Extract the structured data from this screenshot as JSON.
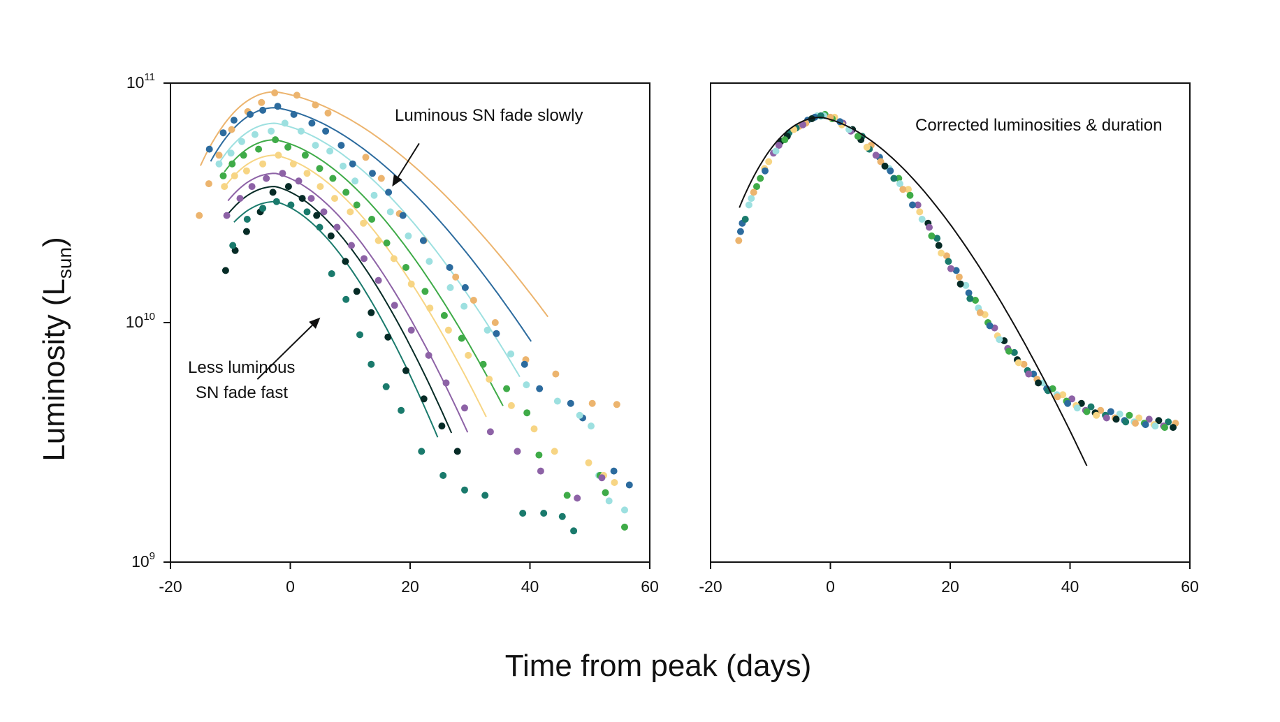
{
  "figure": {
    "ylabel_main": "Luminosity (L",
    "ylabel_sub": "sun",
    "ylabel_close": ")",
    "xlabel": "Time from peak (days)"
  },
  "chart_data": [
    {
      "type": "scatter",
      "panel": "left",
      "yscale": "log",
      "xlim": [
        -20,
        60
      ],
      "ylim": [
        1000000000,
        100000000000
      ],
      "xticks": [
        -20,
        0,
        20,
        40,
        60
      ],
      "xtick_labels": [
        "-20",
        "0",
        "20",
        "40",
        "60"
      ],
      "ytick_labels": [
        {
          "base": "10",
          "exp": "9",
          "value": 1000000000
        },
        {
          "base": "10",
          "exp": "10",
          "value": 10000000000
        },
        {
          "base": "10",
          "exp": "11",
          "value": 100000000000
        }
      ],
      "annotations": [
        {
          "lines": [
            "Luminous SN fade slowly"
          ],
          "arrow_from": [
            21.5,
            56000000000
          ],
          "arrow_to": [
            17,
            37000000000
          ]
        },
        {
          "lines": [
            "Less luminous",
            "SN fade fast"
          ],
          "arrow_from": [
            -5.5,
            5800000000
          ],
          "arrow_to": [
            5,
            10500000000
          ]
        }
      ],
      "series": [
        {
          "color": "#ecb46e",
          "peak": 92000000000,
          "fade": 0.55,
          "line_end": 43,
          "x": [
            -15.2,
            -13.6,
            -11.9,
            -9.8,
            -7.1,
            -4.8,
            -2.6,
            1.1,
            4.2,
            6.3,
            12.6,
            15.2,
            18.2,
            22.3,
            27.6,
            30.6,
            34.2,
            39.3,
            44.3,
            50.4,
            54.5
          ],
          "y": [
            28000000000,
            38000000000,
            50000000000,
            64000000000,
            76000000000,
            83000000000,
            91000000000,
            89000000000,
            81000000000,
            75000000000,
            49000000000,
            40000000000,
            28500000000,
            22000000000,
            15500000000,
            12400000000,
            10000000000,
            7000000000,
            6100000000,
            4600000000,
            4550000000
          ]
        },
        {
          "color": "#2c6b9e",
          "peak": 79000000000,
          "fade": 0.6,
          "line_end": 40.5,
          "x": [
            -13.5,
            -11.2,
            -9.4,
            -6.7,
            -4.6,
            -2.1,
            0.6,
            3.6,
            5.9,
            8.5,
            10.4,
            13.7,
            16.4,
            18.8,
            22.2,
            26.6,
            29.2,
            34.4,
            39.1,
            41.6,
            46.8,
            48.8,
            54.0,
            56.6
          ],
          "y": [
            53000000000,
            62000000000,
            70000000000,
            74000000000,
            77000000000,
            80000000000,
            74000000000,
            68000000000,
            63000000000,
            55000000000,
            46000000000,
            42000000000,
            35000000000,
            28000000000,
            22000000000,
            17000000000,
            14000000000,
            9000000000,
            6700000000,
            5300000000,
            4600000000,
            4000000000,
            2400000000,
            2100000000
          ]
        },
        {
          "color": "#9de0e0",
          "peak": 68000000000,
          "fade": 0.66,
          "line_end": 38.5,
          "x": [
            -11.9,
            -9.9,
            -8.1,
            -5.9,
            -3.2,
            -0.9,
            1.8,
            4.2,
            6.6,
            8.8,
            10.8,
            14.0,
            16.7,
            19.7,
            23.2,
            26.7,
            29.0,
            32.9,
            36.8,
            39.4,
            44.6,
            48.3,
            50.2,
            51.5,
            53.2,
            55.8
          ],
          "y": [
            46000000000,
            51000000000,
            57000000000,
            61000000000,
            63000000000,
            68000000000,
            63000000000,
            55000000000,
            52000000000,
            45000000000,
            39000000000,
            34000000000,
            29000000000,
            23000000000,
            18000000000,
            14000000000,
            11700000000,
            9300000000,
            7400000000,
            5500000000,
            4700000000,
            4100000000,
            3700000000,
            2300000000,
            1800000000,
            1650000000
          ]
        },
        {
          "color": "#3fab48",
          "peak": 58000000000,
          "fade": 0.73,
          "line_end": 35.5,
          "x": [
            -11.2,
            -9.7,
            -7.8,
            -5.3,
            -2.5,
            -0.4,
            2.5,
            4.9,
            7.1,
            9.3,
            11.1,
            13.6,
            16.1,
            19.3,
            22.5,
            25.7,
            28.6,
            32.2,
            36.1,
            39.5,
            41.5,
            46.2,
            51.7,
            52.6,
            55.8
          ],
          "y": [
            41000000000,
            46000000000,
            50000000000,
            53000000000,
            58000000000,
            54000000000,
            50000000000,
            44000000000,
            40000000000,
            35000000000,
            31000000000,
            27000000000,
            21500000000,
            17000000000,
            13500000000,
            10700000000,
            8600000000,
            6700000000,
            5300000000,
            4200000000,
            2800000000,
            1900000000,
            2300000000,
            1950000000,
            1400000000
          ]
        },
        {
          "color": "#f7d584",
          "peak": 50000000000,
          "fade": 0.78,
          "line_end": 33,
          "x": [
            -11.0,
            -9.3,
            -7.3,
            -4.6,
            -2.0,
            0.5,
            2.8,
            5.0,
            7.4,
            10.0,
            12.2,
            14.7,
            17.3,
            20.2,
            23.3,
            26.4,
            29.7,
            33.2,
            36.9,
            40.7,
            44.1,
            49.8,
            52.3,
            54.1
          ],
          "y": [
            37000000000,
            41000000000,
            43000000000,
            46000000000,
            50000000000,
            46000000000,
            42000000000,
            37000000000,
            33000000000,
            29000000000,
            26000000000,
            22000000000,
            18500000000,
            14500000000,
            11500000000,
            9300000000,
            7300000000,
            5800000000,
            4500000000,
            3600000000,
            2900000000,
            2600000000,
            2300000000,
            2150000000
          ]
        },
        {
          "color": "#8d62a6",
          "peak": 42000000000,
          "fade": 0.85,
          "line_end": 30,
          "x": [
            -10.6,
            -8.4,
            -6.4,
            -4.0,
            -1.3,
            1.4,
            3.5,
            5.6,
            7.8,
            10.2,
            12.3,
            14.7,
            17.4,
            20.2,
            23.1,
            26.0,
            29.1,
            33.4,
            37.9,
            41.8,
            47.9,
            52.0
          ],
          "y": [
            28000000000,
            33000000000,
            37000000000,
            40000000000,
            42000000000,
            39000000000,
            33000000000,
            29000000000,
            25000000000,
            21000000000,
            18500000000,
            15000000000,
            11800000000,
            9300000000,
            7300000000,
            5600000000,
            4400000000,
            3500000000,
            2900000000,
            2400000000,
            1850000000,
            2250000000
          ]
        },
        {
          "color": "#062b26",
          "peak": 37000000000,
          "fade": 0.9,
          "line_end": 27,
          "x": [
            -10.8,
            -9.2,
            -7.3,
            -5.0,
            -2.9,
            -0.3,
            2.0,
            4.4,
            6.8,
            9.2,
            11.1,
            13.5,
            16.3,
            19.3,
            22.3,
            25.3,
            27.9
          ],
          "y": [
            16500000000,
            20000000000,
            24000000000,
            29000000000,
            35000000000,
            37000000000,
            33000000000,
            28000000000,
            23000000000,
            18000000000,
            13500000000,
            11000000000,
            8700000000,
            6300000000,
            4800000000,
            3700000000,
            2900000000
          ]
        },
        {
          "color": "#1a7a6c",
          "peak": 32000000000,
          "fade": 0.95,
          "line_end": 25,
          "x": [
            -9.6,
            -7.2,
            -4.6,
            -2.3,
            0.1,
            2.8,
            4.9,
            6.9,
            9.3,
            11.6,
            13.5,
            16.0,
            18.5,
            21.9,
            25.5,
            29.1,
            32.5,
            38.8,
            42.3,
            45.4,
            47.3
          ],
          "y": [
            21000000000,
            27000000000,
            30000000000,
            32000000000,
            31000000000,
            29000000000,
            25000000000,
            16000000000,
            12500000000,
            8900000000,
            6700000000,
            5400000000,
            4300000000,
            2900000000,
            2300000000,
            2000000000,
            1900000000,
            1600000000,
            1600000000,
            1550000000,
            1350000000
          ]
        }
      ]
    },
    {
      "type": "scatter",
      "panel": "right",
      "yscale": "log",
      "xlim": [
        -20,
        60
      ],
      "ylim": [
        1000000000,
        100000000000
      ],
      "xticks": [
        -20,
        0,
        20,
        40,
        60
      ],
      "xtick_labels": [
        "-20",
        "0",
        "20",
        "40",
        "60"
      ],
      "annotations": [
        {
          "lines": [
            "Corrected luminosities & duration"
          ]
        }
      ],
      "fit": {
        "color": "#111111",
        "peak": 72000000000,
        "fade": 0.74,
        "x_start": -15.2,
        "x_end": 43
      },
      "colors": [
        "#ecb46e",
        "#2c6b9e",
        "#9de0e0",
        "#3fab48",
        "#f7d584",
        "#8d62a6",
        "#062b26",
        "#1a7a6c"
      ],
      "points": {
        "x": [
          -15.3,
          -14.7,
          -13.6,
          -12.3,
          -11.0,
          -9.5,
          -8.3,
          -6.9,
          -5.2,
          -3.8,
          -2.2,
          -0.9,
          0.7,
          2.1,
          3.7,
          5.3,
          6.8,
          8.2,
          9.8,
          11.4,
          13.0,
          14.6,
          16.3,
          17.8,
          19.4,
          21.0,
          22.6,
          24.2,
          25.8,
          27.4,
          29.0,
          30.7,
          32.3,
          33.9,
          35.5,
          37.1,
          38.8,
          40.3,
          41.9,
          43.5,
          45.1,
          46.8,
          48.3,
          49.9,
          51.5,
          53.2,
          54.8,
          56.4,
          57.6,
          -15.0,
          -13.2,
          -11.7,
          -10.3,
          -8.6,
          -7.2,
          -5.7,
          -4.1,
          -2.6,
          -1.1,
          0.3,
          1.9,
          3.4,
          5.1,
          6.5,
          8.4,
          10.0,
          11.6,
          13.3,
          14.9,
          16.5,
          18.1,
          19.7,
          21.5,
          23.1,
          24.7,
          26.3,
          27.9,
          29.6,
          31.2,
          32.9,
          34.5,
          36.1,
          37.8,
          39.4,
          41.0,
          42.6,
          44.2,
          45.9,
          47.5,
          49.1,
          50.7,
          52.4,
          54.0,
          55.6,
          57.2,
          -14.2,
          -12.8,
          -10.9,
          -9.1,
          -7.6,
          -6.1,
          -4.6,
          -3.1,
          -1.6,
          0.0,
          1.6,
          3.1,
          4.6,
          6.1,
          7.6,
          9.1,
          10.6,
          12.1,
          13.7,
          15.3,
          16.9,
          18.5,
          20.1,
          21.7,
          23.3,
          25.0,
          26.6,
          28.2,
          29.8,
          31.4,
          33.1,
          34.7,
          36.3,
          37.9,
          39.6,
          41.2,
          42.8,
          44.4,
          46.1,
          47.7,
          49.3,
          50.9,
          52.6,
          54.2,
          55.8
        ],
        "y": [
          22000000000,
          26000000000,
          31000000000,
          37000000000,
          44000000000,
          51000000000,
          57000000000,
          62000000000,
          66000000000,
          70000000000,
          73000000000,
          74000000000,
          72000000000,
          68000000000,
          64000000000,
          60000000000,
          55000000000,
          49000000000,
          44000000000,
          40000000000,
          36000000000,
          31000000000,
          26000000000,
          22500000000,
          19000000000,
          16500000000,
          14300000000,
          12400000000,
          10800000000,
          9500000000,
          8400000000,
          7500000000,
          6700000000,
          6100000000,
          5600000000,
          5300000000,
          5000000000,
          4800000000,
          4600000000,
          4450000000,
          4300000000,
          4250000000,
          4150000000,
          4100000000,
          4000000000,
          3950000000,
          3900000000,
          3850000000,
          3800000000,
          24000000000,
          33000000000,
          40000000000,
          47000000000,
          55000000000,
          60000000000,
          65000000000,
          68000000000,
          72000000000,
          73000000000,
          71000000000,
          67000000000,
          63000000000,
          58000000000,
          53000000000,
          47000000000,
          43000000000,
          38000000000,
          34000000000,
          29000000000,
          25000000000,
          21000000000,
          18000000000,
          15500000000,
          13300000000,
          11500000000,
          10000000000,
          8800000000,
          7800000000,
          7000000000,
          6300000000,
          5800000000,
          5300000000,
          5000000000,
          4700000000,
          4500000000,
          4300000000,
          4200000000,
          4100000000,
          4000000000,
          3900000000,
          3850000000,
          3800000000,
          3750000000,
          3700000000,
          3650000000,
          27000000000,
          35000000000,
          43000000000,
          52000000000,
          58000000000,
          64000000000,
          67000000000,
          71000000000,
          73000000000,
          72000000000,
          69000000000,
          64000000000,
          60000000000,
          54000000000,
          50000000000,
          45000000000,
          40000000000,
          36000000000,
          31000000000,
          27000000000,
          23000000000,
          19500000000,
          16800000000,
          14500000000,
          12600000000,
          11000000000,
          9700000000,
          8500000000,
          7600000000,
          6800000000,
          6100000000,
          5600000000,
          5200000000,
          4900000000,
          4600000000,
          4400000000,
          4250000000,
          4100000000,
          4000000000,
          3950000000,
          3850000000,
          3800000000,
          3750000000,
          3700000000,
          3650000000
        ]
      }
    }
  ]
}
